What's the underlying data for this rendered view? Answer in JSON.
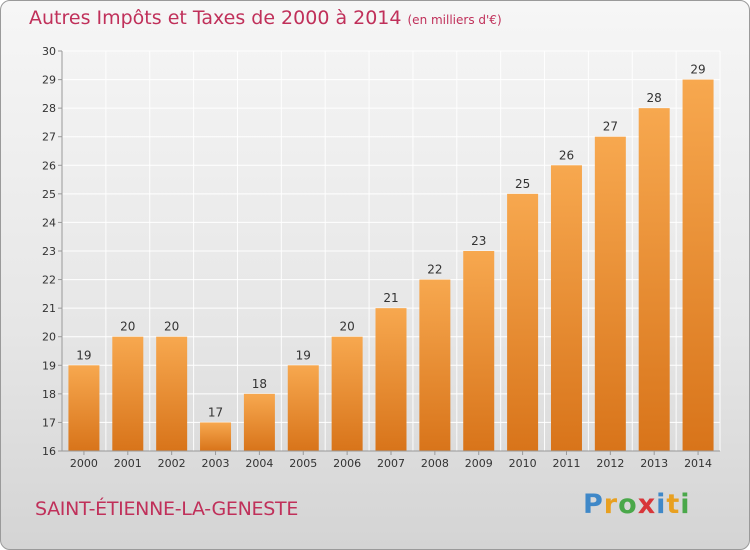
{
  "header": {
    "title": "Autres Impôts et Taxes de 2000 à 2014",
    "unit": "(en milliers d'€)"
  },
  "footer": {
    "commune": "SAINT-ÉTIENNE-LA-GENESTE",
    "logo": "Proxiti"
  },
  "colors": {
    "title": "#c0305a",
    "bar_light": "#f7a84f",
    "bar_dark": "#d8741a",
    "grid": "#ffffff"
  },
  "chart_data": {
    "type": "bar",
    "title": "Autres Impôts et Taxes de 2000 à 2014",
    "categories": [
      "2000",
      "2001",
      "2002",
      "2003",
      "2004",
      "2005",
      "2006",
      "2007",
      "2008",
      "2009",
      "2010",
      "2011",
      "2012",
      "2013",
      "2014"
    ],
    "values": [
      19,
      20,
      20,
      17,
      18,
      19,
      20,
      21,
      22,
      23,
      25,
      26,
      27,
      28,
      29
    ],
    "ylim": [
      16,
      30
    ],
    "yticks": [
      16,
      17,
      18,
      19,
      20,
      21,
      22,
      23,
      24,
      25,
      26,
      27,
      28,
      29,
      30
    ],
    "grid": true,
    "xlabel": "",
    "ylabel": ""
  }
}
